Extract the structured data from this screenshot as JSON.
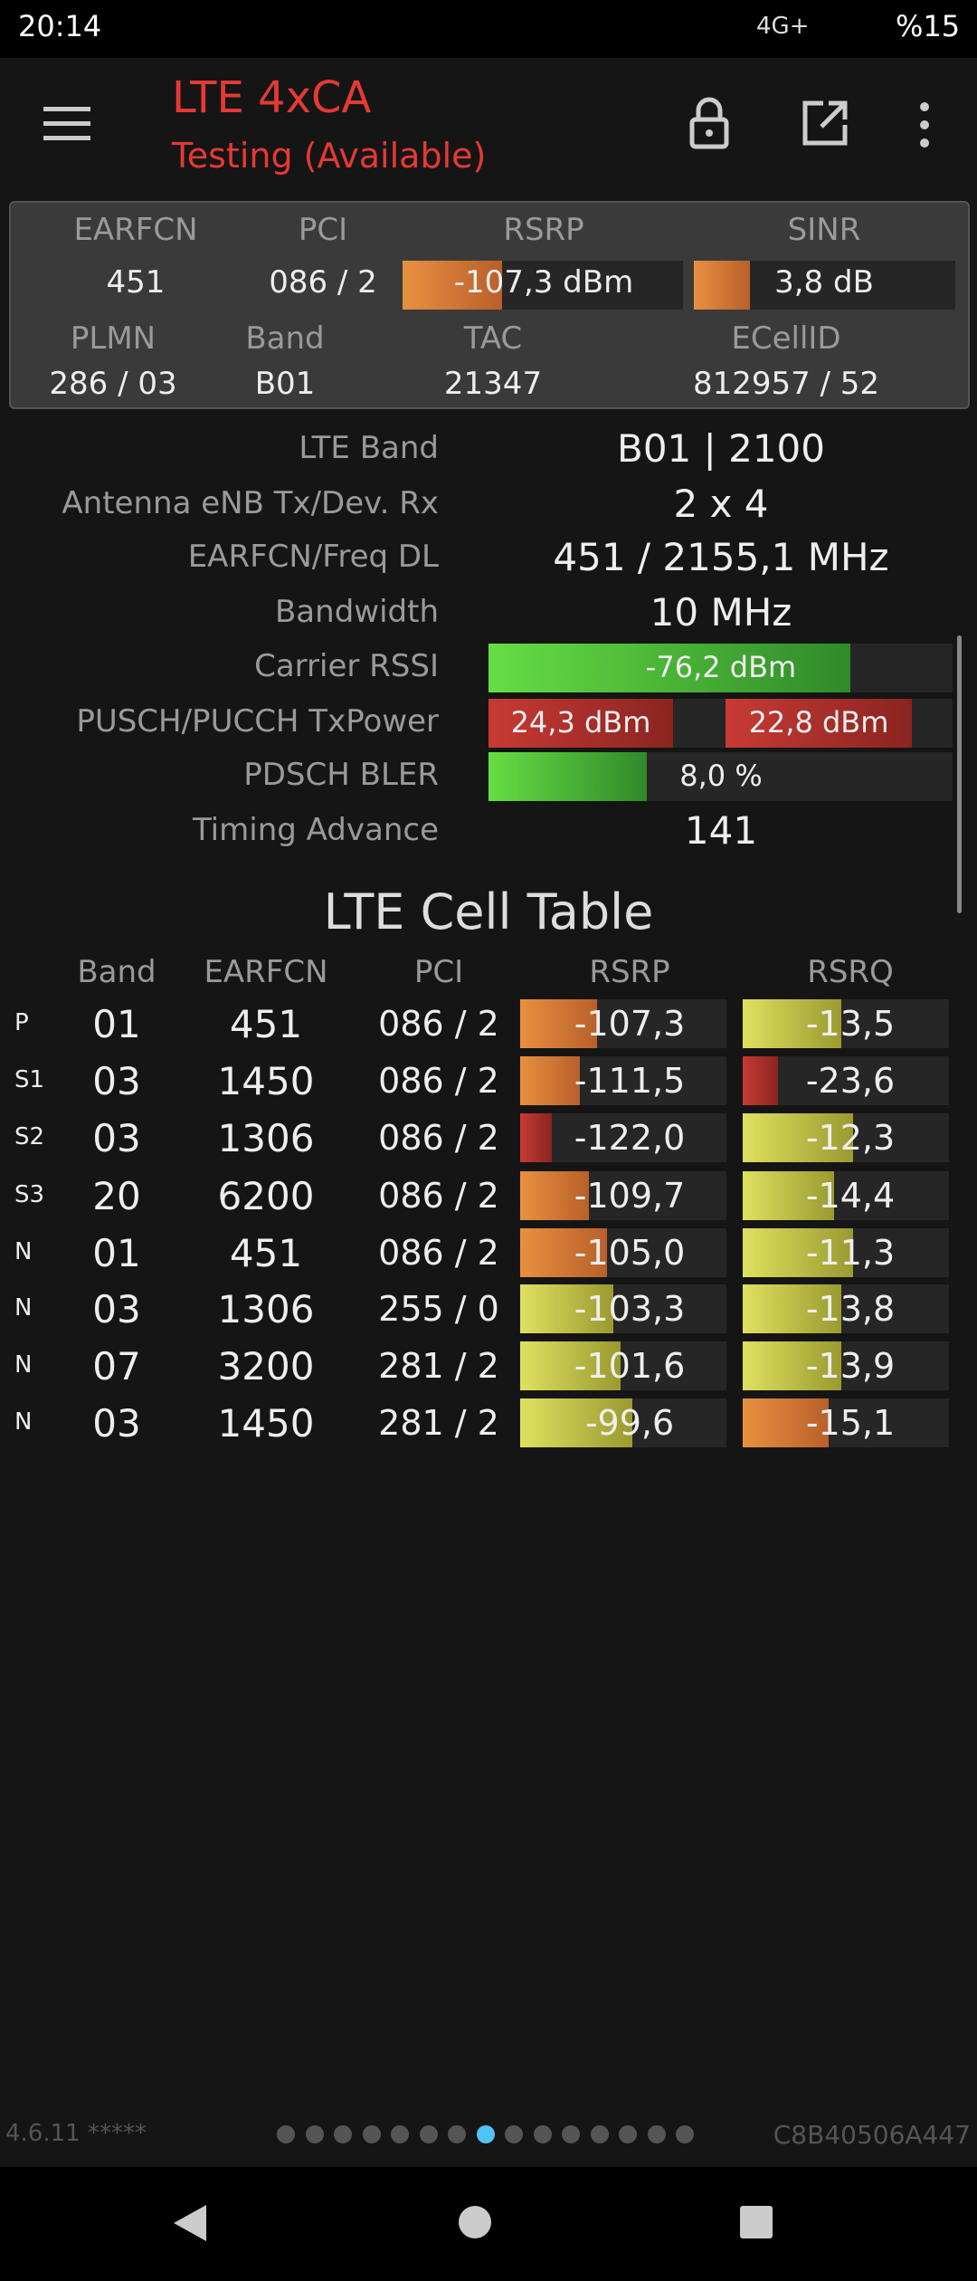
{
  "status_bar": {
    "time": "20:14",
    "network": "4G+",
    "battery": "%15"
  },
  "header": {
    "title": "LTE 4xCA",
    "subtitle": "Testing (Available)"
  },
  "summary": {
    "headers_top": [
      "EARFCN",
      "PCI",
      "RSRP",
      "SINR"
    ],
    "values_top": [
      "451",
      "086 / 2",
      "-107,3 dBm",
      "3,8 dB"
    ],
    "headers_bottom": [
      "PLMN",
      "Band",
      "TAC",
      "ECellID"
    ],
    "values_bottom": [
      "286 / 03",
      "B01",
      "21347",
      "812957 / 52"
    ]
  },
  "details": [
    {
      "label": "LTE Band",
      "value": "B01 | 2100"
    },
    {
      "label": "Antenna eNB Tx/Dev. Rx",
      "value": "2 x 4"
    },
    {
      "label": "EARFCN/Freq DL",
      "value": "451 / 2155,1 MHz"
    },
    {
      "label": "Bandwidth",
      "value": "10 MHz"
    },
    {
      "label": "Carrier RSSI",
      "value": "-76,2 dBm"
    },
    {
      "label": "PUSCH/PUCCH TxPower",
      "values": [
        "24,3 dBm",
        "22,8 dBm"
      ]
    },
    {
      "label": "PDSCH BLER",
      "value": "8,0 %"
    },
    {
      "label": "Timing Advance",
      "value": "141"
    }
  ],
  "cell_table": {
    "title": "LTE Cell Table",
    "columns": [
      "Band",
      "EARFCN",
      "PCI",
      "RSRP",
      "RSRQ"
    ],
    "rows": [
      [
        "P",
        "01",
        "451",
        "086 / 2",
        "-107,3",
        "-13,5"
      ],
      [
        "S1",
        "03",
        "1450",
        "086 / 2",
        "-111,5",
        "-23,6"
      ],
      [
        "S2",
        "03",
        "1306",
        "086 / 2",
        "-122,0",
        "-12,3"
      ],
      [
        "S3",
        "20",
        "6200",
        "086 / 2",
        "-109,7",
        "-14,4"
      ],
      [
        "N",
        "01",
        "451",
        "086 / 2",
        "-105,0",
        "-11,3"
      ],
      [
        "N",
        "03",
        "1306",
        "255 / 0",
        "-103,3",
        "-13,8"
      ],
      [
        "N",
        "07",
        "3200",
        "281 / 2",
        "-101,6",
        "-13,9"
      ],
      [
        "N",
        "03",
        "1450",
        "281 / 2",
        "-99,6",
        "-15,1"
      ]
    ]
  },
  "footer": {
    "version": "4.6.11 *****",
    "device_id": "C8B40506A447"
  }
}
